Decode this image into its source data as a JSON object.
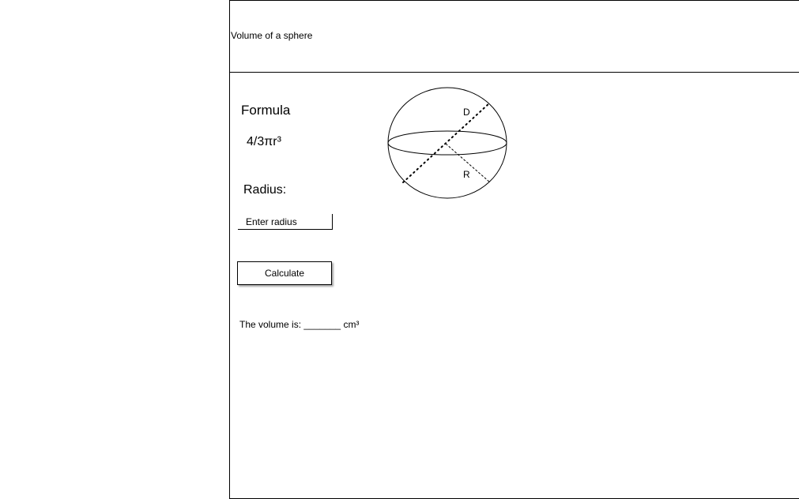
{
  "header": {
    "title": "Volume of a sphere"
  },
  "formula": {
    "label": "Formula",
    "expression": "4/3πr³"
  },
  "radius": {
    "label": "Radius:",
    "input_placeholder": "Enter radius"
  },
  "actions": {
    "calculate_label": "Calculate"
  },
  "result": {
    "prefix": "The volume is:",
    "blank": "_______",
    "unit": "cm³"
  },
  "diagram": {
    "diameter_label": "D",
    "radius_label": "R"
  }
}
